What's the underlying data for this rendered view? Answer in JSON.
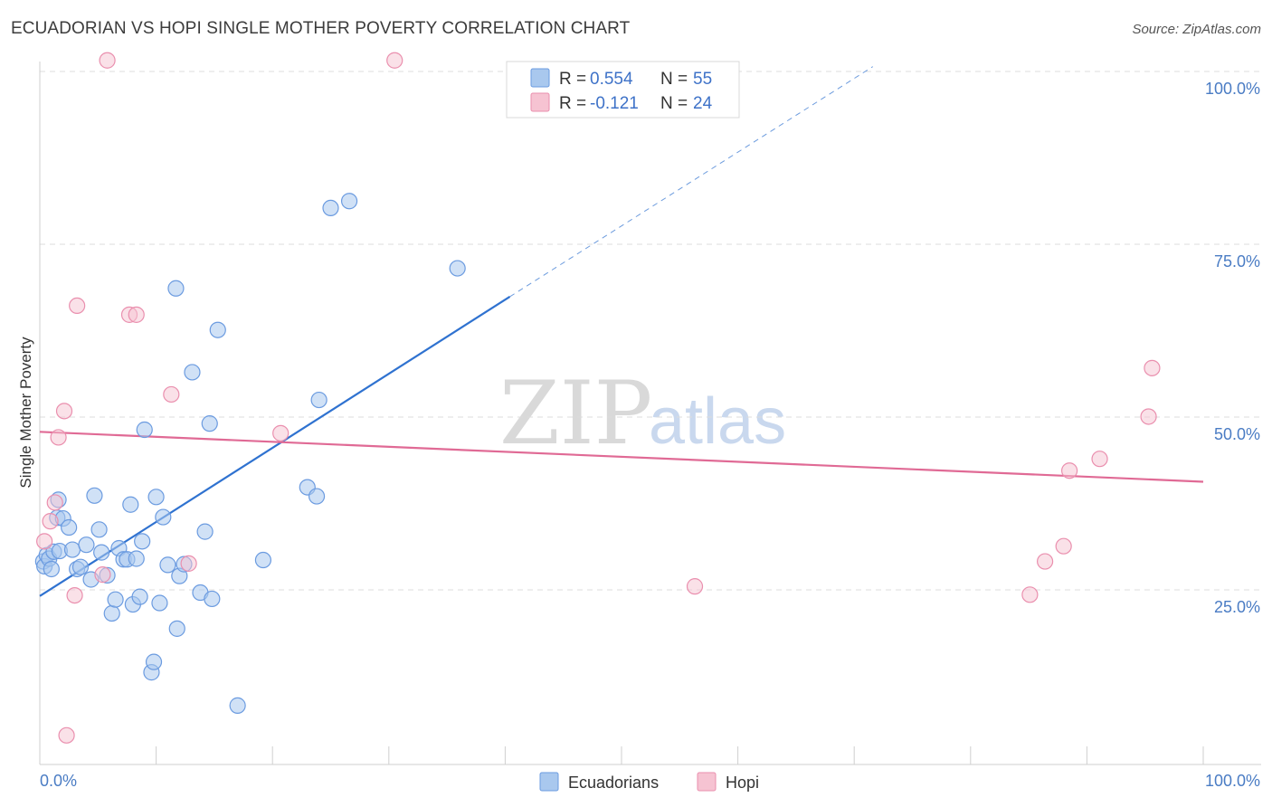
{
  "title": "ECUADORIAN VS HOPI SINGLE MOTHER POVERTY CORRELATION CHART",
  "source": "Source: ZipAtlas.com",
  "watermark": {
    "zip": "ZIP",
    "atlas": "atlas"
  },
  "colors": {
    "ecuadorians_fill": "#a9c8ee",
    "ecuadorians_stroke": "#6b9be0",
    "ecuadorians_line": "#2f72d0",
    "hopi_fill": "#f6c3d2",
    "hopi_stroke": "#ea8fae",
    "hopi_line": "#e06a95",
    "tick_text": "#4a7cc4",
    "grid": "#dcdcdc"
  },
  "legend": {
    "rows": [
      {
        "r_label": "R =",
        "r_value": "0.554",
        "n_label": "N =",
        "n_value": "55"
      },
      {
        "r_label": "R =",
        "r_value": "-0.121",
        "n_label": "N =",
        "n_value": "24"
      }
    ]
  },
  "chart_data": {
    "type": "scatter",
    "title": "ECUADORIAN VS HOPI SINGLE MOTHER POVERTY CORRELATION CHART",
    "xlabel": "",
    "ylabel": "Single Mother Poverty",
    "xlim": [
      0,
      100
    ],
    "ylim": [
      0,
      100
    ],
    "x_tick_labels": [
      "0.0%",
      "100.0%"
    ],
    "y_ticks": [
      25,
      50,
      75,
      100
    ],
    "y_tick_labels": [
      "25.0%",
      "50.0%",
      "75.0%",
      "100.0%"
    ],
    "grid": true,
    "legend_position": "top-center",
    "series": [
      {
        "name": "Ecuadorians",
        "r": 0.554,
        "n": 55,
        "trend": {
          "x0": 0,
          "y0": 24.3,
          "x1": 40.4,
          "y1": 67.5,
          "dashed_to_x": 71.6,
          "dashed_to_y": 100.7
        },
        "points": [
          [
            0.3,
            29.3
          ],
          [
            0.4,
            28.6
          ],
          [
            0.6,
            30.2
          ],
          [
            0.8,
            29.7
          ],
          [
            1.0,
            28.2
          ],
          [
            1.2,
            30.7
          ],
          [
            1.5,
            35.6
          ],
          [
            1.7,
            30.8
          ],
          [
            2.0,
            35.5
          ],
          [
            2.5,
            34.2
          ],
          [
            2.8,
            31.0
          ],
          [
            3.2,
            28.2
          ],
          [
            3.5,
            28.5
          ],
          [
            4.0,
            31.7
          ],
          [
            4.4,
            26.7
          ],
          [
            4.7,
            38.8
          ],
          [
            5.1,
            33.9
          ],
          [
            5.3,
            30.6
          ],
          [
            5.8,
            27.3
          ],
          [
            6.2,
            21.8
          ],
          [
            6.5,
            23.8
          ],
          [
            6.8,
            31.2
          ],
          [
            7.2,
            29.6
          ],
          [
            7.5,
            29.6
          ],
          [
            7.8,
            37.5
          ],
          [
            8.0,
            23.1
          ],
          [
            8.3,
            29.7
          ],
          [
            8.6,
            24.2
          ],
          [
            8.8,
            32.2
          ],
          [
            9.0,
            48.3
          ],
          [
            9.6,
            13.3
          ],
          [
            9.8,
            14.8
          ],
          [
            10.0,
            38.6
          ],
          [
            10.3,
            23.3
          ],
          [
            10.6,
            35.7
          ],
          [
            11.0,
            28.8
          ],
          [
            11.7,
            68.7
          ],
          [
            11.8,
            19.6
          ],
          [
            12.0,
            27.2
          ],
          [
            12.4,
            28.9
          ],
          [
            13.1,
            56.6
          ],
          [
            13.8,
            24.8
          ],
          [
            14.2,
            33.6
          ],
          [
            14.6,
            49.2
          ],
          [
            14.8,
            23.9
          ],
          [
            15.3,
            62.7
          ],
          [
            17.0,
            8.5
          ],
          [
            19.2,
            29.5
          ],
          [
            23.0,
            40.0
          ],
          [
            23.8,
            38.7
          ],
          [
            24.0,
            52.6
          ],
          [
            25.0,
            80.3
          ],
          [
            26.6,
            81.3
          ],
          [
            35.9,
            71.6
          ],
          [
            1.6,
            38.2
          ]
        ]
      },
      {
        "name": "Hopi",
        "r": -0.121,
        "n": 24,
        "trend": {
          "x0": 0,
          "y0": 48.0,
          "x1": 100,
          "y1": 40.8
        },
        "points": [
          [
            0.4,
            32.2
          ],
          [
            0.9,
            35.1
          ],
          [
            1.3,
            37.8
          ],
          [
            1.6,
            47.2
          ],
          [
            2.1,
            51.0
          ],
          [
            3.0,
            24.4
          ],
          [
            3.2,
            66.2
          ],
          [
            5.4,
            27.4
          ],
          [
            5.8,
            101.6
          ],
          [
            7.7,
            64.9
          ],
          [
            8.3,
            64.9
          ],
          [
            11.3,
            53.4
          ],
          [
            12.8,
            29.0
          ],
          [
            20.7,
            47.8
          ],
          [
            30.5,
            101.6
          ],
          [
            56.3,
            25.7
          ],
          [
            85.1,
            24.5
          ],
          [
            86.4,
            29.3
          ],
          [
            88.0,
            31.5
          ],
          [
            88.5,
            42.4
          ],
          [
            91.1,
            44.1
          ],
          [
            95.3,
            50.2
          ],
          [
            95.6,
            57.2
          ],
          [
            2.3,
            4.2
          ]
        ]
      }
    ]
  },
  "bottom_legend": {
    "items": [
      "Ecuadorians",
      "Hopi"
    ]
  }
}
